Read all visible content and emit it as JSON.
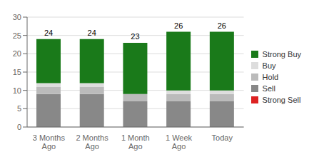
{
  "chart_data": {
    "type": "bar",
    "stacked": true,
    "grid": true,
    "categories": [
      "3 Months\nAgo",
      "2 Months\nAgo",
      "1 Month\nAgo",
      "1 Week\nAgo",
      "Today"
    ],
    "series": [
      {
        "name": "Strong Sell",
        "color": "#dd2222",
        "values": [
          0,
          0,
          0,
          0,
          0
        ]
      },
      {
        "name": "Sell",
        "color": "#888888",
        "values": [
          9,
          9,
          7,
          7,
          7
        ]
      },
      {
        "name": "Hold",
        "color": "#bbbbbb",
        "values": [
          2,
          2,
          2,
          2,
          2
        ]
      },
      {
        "name": "Buy",
        "color": "#dddddd",
        "values": [
          1,
          1,
          0,
          1,
          1
        ]
      },
      {
        "name": "Strong Buy",
        "color": "#1a7a1a",
        "values": [
          12,
          12,
          14,
          16,
          16
        ]
      }
    ],
    "totals": [
      24,
      24,
      23,
      26,
      26
    ],
    "ylim": [
      0,
      30
    ],
    "yticks": [
      0,
      5,
      10,
      15,
      20,
      25,
      30
    ]
  }
}
